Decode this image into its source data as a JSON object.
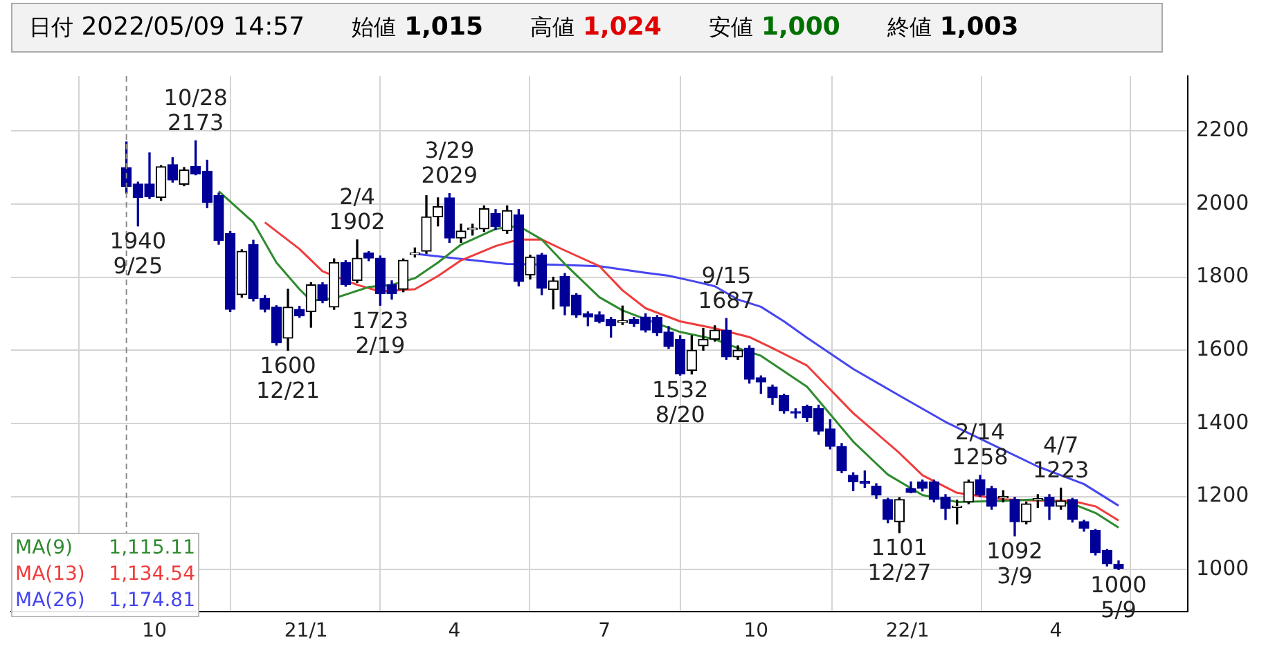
{
  "chart_data": {
    "type": "candlestick",
    "annotations": [
      "日付 2022/05/09 14:57",
      "始値 1,015",
      "高値 1,024",
      "安値 1,000",
      "終値 1,003",
      {
        "text": "10/28\n2173",
        "x": "2020-10-26",
        "y": 2173
      },
      {
        "text": "1940\n9/25",
        "x": "2020-09-21",
        "y": 1940
      },
      {
        "text": "1600\n12/21",
        "x": "2020-12-21",
        "y": 1600
      },
      {
        "text": "2/4\n1902",
        "x": "2021-02-01",
        "y": 1902
      },
      {
        "text": "1723\n2/19",
        "x": "2021-02-15",
        "y": 1723
      },
      {
        "text": "3/29\n2029",
        "x": "2021-03-29",
        "y": 2029
      },
      {
        "text": "1532\n8/20",
        "x": "2021-08-16",
        "y": 1532
      },
      {
        "text": "9/15\n1687",
        "x": "2021-09-13",
        "y": 1687
      },
      {
        "text": "1101\n12/27",
        "x": "2021-12-27",
        "y": 1101
      },
      {
        "text": "2/14\n1258",
        "x": "2022-02-14",
        "y": 1258
      },
      {
        "text": "1092\n3/9",
        "x": "2022-03-07",
        "y": 1092
      },
      {
        "text": "4/7\n1223",
        "x": "2022-04-04",
        "y": 1223
      },
      {
        "text": "1000\n5/9",
        "x": "2022-05-09",
        "y": 1000
      }
    ],
    "series": [
      {
        "type": "candlestick",
        "colors": [
          "#000099",
          "#000099",
          "#000099",
          "#000000",
          "#000099",
          "#000000",
          "#000099",
          "#000099",
          "#000099",
          "#000099",
          "#000000",
          "#000099",
          "#000099",
          "#000099",
          "#000000",
          "#000099",
          "#000000",
          "#000099",
          "#000000",
          "#000099",
          "#000000",
          "#000099",
          "#000099",
          "#000099",
          "#000000",
          "#000000",
          "#000000",
          "#000000",
          "#000099",
          "#000000",
          "#000000",
          "#000000",
          "#000099",
          "#000000",
          "#000099",
          "#000000",
          "#000099",
          "#000000",
          "#000099",
          "#000099",
          "#000099",
          "#000099",
          "#000099",
          "#000000",
          "#000099",
          "#000099",
          "#000099",
          "#000099",
          "#000099",
          "#000000",
          "#000000",
          "#000000",
          "#000099",
          "#000000",
          "#000099",
          "#000099",
          "#000099",
          "#000099",
          "#000099",
          "#000099",
          "#000099",
          "#000099",
          "#000099",
          "#000099",
          "#000099",
          "#000099",
          "#000099",
          "#000000",
          "#000099",
          "#000099",
          "#000099",
          "#000099",
          "#000000",
          "#000000",
          "#000099",
          "#000099",
          "#000000",
          "#000099",
          "#000000",
          "#000000",
          "#000099",
          "#000000",
          "#000099",
          "#000099",
          "#000099",
          "#000099",
          "#000099"
        ],
        "x": [
          "2020-09-14",
          "2020-09-21",
          "2020-09-28",
          "2020-10-05",
          "2020-10-12",
          "2020-10-19",
          "2020-10-26",
          "2020-11-02",
          "2020-11-09",
          "2020-11-16",
          "2020-11-23",
          "2020-11-30",
          "2020-12-07",
          "2020-12-14",
          "2020-12-21",
          "2020-12-28",
          "2021-01-04",
          "2021-01-11",
          "2021-01-18",
          "2021-01-25",
          "2021-02-01",
          "2021-02-08",
          "2021-02-15",
          "2021-02-22",
          "2021-03-01",
          "2021-03-08",
          "2021-03-15",
          "2021-03-22",
          "2021-03-29",
          "2021-04-05",
          "2021-04-12",
          "2021-04-19",
          "2021-04-26",
          "2021-05-03",
          "2021-05-10",
          "2021-05-17",
          "2021-05-24",
          "2021-05-31",
          "2021-06-07",
          "2021-06-14",
          "2021-06-21",
          "2021-06-28",
          "2021-07-05",
          "2021-07-12",
          "2021-07-19",
          "2021-07-26",
          "2021-08-02",
          "2021-08-09",
          "2021-08-16",
          "2021-08-23",
          "2021-08-30",
          "2021-09-06",
          "2021-09-13",
          "2021-09-20",
          "2021-09-27",
          "2021-10-04",
          "2021-10-11",
          "2021-10-18",
          "2021-10-25",
          "2021-11-01",
          "2021-11-08",
          "2021-11-15",
          "2021-11-22",
          "2021-11-29",
          "2021-12-06",
          "2021-12-13",
          "2021-12-20",
          "2021-12-27",
          "2022-01-03",
          "2022-01-10",
          "2022-01-17",
          "2022-01-24",
          "2022-01-31",
          "2022-02-07",
          "2022-02-14",
          "2022-02-21",
          "2022-02-28",
          "2022-03-07",
          "2022-03-14",
          "2022-03-21",
          "2022-03-28",
          "2022-04-04",
          "2022-04-11",
          "2022-04-18",
          "2022-04-25",
          "2022-05-02",
          "2022-05-09"
        ],
        "ohlc": [
          [
            2100,
            2170,
            2030,
            2048
          ],
          [
            2055,
            2060,
            1940,
            2018
          ],
          [
            2055,
            2140,
            2015,
            2020
          ],
          [
            2018,
            2105,
            2010,
            2102
          ],
          [
            2108,
            2127,
            2060,
            2066
          ],
          [
            2054,
            2100,
            2050,
            2093
          ],
          [
            2103,
            2173,
            2080,
            2082
          ],
          [
            2090,
            2120,
            1990,
            2005
          ],
          [
            2023,
            2030,
            1890,
            1901
          ],
          [
            1919,
            1925,
            1706,
            1712
          ],
          [
            1752,
            1875,
            1745,
            1871
          ],
          [
            1889,
            1901,
            1735,
            1742
          ],
          [
            1742,
            1750,
            1705,
            1712
          ],
          [
            1718,
            1722,
            1614,
            1620
          ],
          [
            1633,
            1767,
            1600,
            1718
          ],
          [
            1712,
            1720,
            1690,
            1694
          ],
          [
            1706,
            1785,
            1663,
            1779
          ],
          [
            1779,
            1785,
            1730,
            1736
          ],
          [
            1718,
            1850,
            1712,
            1840
          ],
          [
            1840,
            1845,
            1775,
            1779
          ],
          [
            1791,
            1902,
            1785,
            1852
          ],
          [
            1866,
            1870,
            1845,
            1852
          ],
          [
            1852,
            1858,
            1723,
            1755
          ],
          [
            1779,
            1790,
            1740,
            1755
          ],
          [
            1767,
            1850,
            1760,
            1846
          ],
          [
            1862,
            1880,
            1855,
            1866
          ],
          [
            1871,
            2023,
            1865,
            1965
          ],
          [
            1965,
            2017,
            1940,
            1993
          ],
          [
            2017,
            2029,
            1895,
            1907
          ],
          [
            1907,
            1945,
            1895,
            1926
          ],
          [
            1930,
            1945,
            1915,
            1934
          ],
          [
            1932,
            1995,
            1925,
            1987
          ],
          [
            1974,
            1985,
            1930,
            1938
          ],
          [
            1927,
            1995,
            1920,
            1982
          ],
          [
            1970,
            1985,
            1776,
            1788
          ],
          [
            1806,
            1860,
            1795,
            1855
          ],
          [
            1861,
            1865,
            1752,
            1770
          ],
          [
            1766,
            1800,
            1713,
            1790
          ],
          [
            1802,
            1810,
            1697,
            1721
          ],
          [
            1751,
            1755,
            1690,
            1697
          ],
          [
            1700,
            1705,
            1667,
            1691
          ],
          [
            1697,
            1705,
            1675,
            1679
          ],
          [
            1685,
            1690,
            1636,
            1667
          ],
          [
            1676,
            1721,
            1670,
            1681
          ],
          [
            1685,
            1690,
            1665,
            1673
          ],
          [
            1691,
            1700,
            1650,
            1655
          ],
          [
            1690,
            1695,
            1640,
            1648
          ],
          [
            1650,
            1665,
            1605,
            1610
          ],
          [
            1630,
            1640,
            1532,
            1535
          ],
          [
            1545,
            1640,
            1535,
            1600
          ],
          [
            1612,
            1660,
            1600,
            1630
          ],
          [
            1630,
            1667,
            1625,
            1655
          ],
          [
            1655,
            1687,
            1575,
            1582
          ],
          [
            1582,
            1612,
            1575,
            1600
          ],
          [
            1606,
            1612,
            1510,
            1521
          ],
          [
            1525,
            1530,
            1482,
            1513
          ],
          [
            1500,
            1505,
            1452,
            1470
          ],
          [
            1476,
            1480,
            1428,
            1434
          ],
          [
            1432,
            1440,
            1415,
            1428
          ],
          [
            1446,
            1450,
            1405,
            1416
          ],
          [
            1440,
            1450,
            1370,
            1379
          ],
          [
            1385,
            1410,
            1330,
            1337
          ],
          [
            1337,
            1345,
            1265,
            1270
          ],
          [
            1258,
            1265,
            1216,
            1240
          ],
          [
            1242,
            1270,
            1225,
            1236
          ],
          [
            1228,
            1235,
            1195,
            1204
          ],
          [
            1192,
            1195,
            1128,
            1137
          ],
          [
            1131,
            1197,
            1101,
            1192
          ],
          [
            1222,
            1240,
            1210,
            1212
          ],
          [
            1240,
            1245,
            1215,
            1222
          ],
          [
            1240,
            1245,
            1185,
            1192
          ],
          [
            1198,
            1205,
            1137,
            1167
          ],
          [
            1170,
            1190,
            1125,
            1174
          ],
          [
            1185,
            1245,
            1180,
            1240
          ],
          [
            1246,
            1258,
            1200,
            1204
          ],
          [
            1222,
            1228,
            1165,
            1173
          ],
          [
            1196,
            1216,
            1185,
            1200
          ],
          [
            1192,
            1198,
            1092,
            1131
          ],
          [
            1131,
            1185,
            1125,
            1180
          ],
          [
            1190,
            1205,
            1170,
            1194
          ],
          [
            1198,
            1205,
            1137,
            1173
          ],
          [
            1173,
            1223,
            1165,
            1188
          ],
          [
            1192,
            1195,
            1130,
            1137
          ],
          [
            1131,
            1135,
            1105,
            1113
          ],
          [
            1107,
            1110,
            1040,
            1046
          ],
          [
            1052,
            1055,
            1010,
            1016
          ],
          [
            1015,
            1024,
            1000,
            1003
          ]
        ]
      },
      {
        "type": "line",
        "name": "MA(9) 1,115.11",
        "color": "#2e8b2e",
        "x": [
          "2020-11-09",
          "2020-11-30",
          "2020-12-14",
          "2020-12-28",
          "2021-01-04",
          "2021-01-18",
          "2021-02-08",
          "2021-02-22",
          "2021-03-08",
          "2021-03-22",
          "2021-04-05",
          "2021-04-26",
          "2021-05-10",
          "2021-05-24",
          "2021-06-07",
          "2021-06-28",
          "2021-07-12",
          "2021-07-26",
          "2021-08-16",
          "2021-09-06",
          "2021-09-20",
          "2021-10-04",
          "2021-11-01",
          "2021-11-29",
          "2021-12-20",
          "2022-01-10",
          "2022-01-31",
          "2022-02-28",
          "2022-03-21",
          "2022-04-11",
          "2022-04-25",
          "2022-05-09"
        ],
        "values": [
          2035,
          1950,
          1840,
          1767,
          1736,
          1742,
          1773,
          1779,
          1797,
          1840,
          1889,
          1932,
          1940,
          1903,
          1836,
          1745,
          1709,
          1685,
          1650,
          1630,
          1606,
          1585,
          1500,
          1350,
          1260,
          1204,
          1185,
          1188,
          1192,
          1180,
          1155,
          1115.11
        ]
      },
      {
        "type": "line",
        "name": "MA(13) 1,134.54",
        "color": "#f03c3c",
        "x": [
          "2020-12-07",
          "2020-12-28",
          "2021-01-11",
          "2021-02-01",
          "2021-02-15",
          "2021-03-08",
          "2021-03-22",
          "2021-04-05",
          "2021-04-26",
          "2021-05-10",
          "2021-05-24",
          "2021-06-07",
          "2021-06-28",
          "2021-07-12",
          "2021-07-26",
          "2021-08-16",
          "2021-09-06",
          "2021-09-27",
          "2021-10-11",
          "2021-11-01",
          "2021-11-29",
          "2021-12-27",
          "2022-01-10",
          "2022-01-31",
          "2022-02-28",
          "2022-03-21",
          "2022-04-11",
          "2022-04-25",
          "2022-05-09"
        ],
        "values": [
          1950,
          1877,
          1816,
          1779,
          1761,
          1767,
          1803,
          1846,
          1885,
          1903,
          1903,
          1873,
          1830,
          1764,
          1715,
          1679,
          1660,
          1636,
          1606,
          1558,
          1428,
          1319,
          1258,
          1210,
          1192,
          1189,
          1188,
          1173,
          1134.54
        ]
      },
      {
        "type": "line",
        "name": "MA(26) 1,174.81",
        "color": "#4646f0",
        "x": [
          "2021-03-08",
          "2021-04-05",
          "2021-05-03",
          "2021-05-31",
          "2021-06-28",
          "2021-07-26",
          "2021-08-09",
          "2021-08-23",
          "2021-09-06",
          "2021-09-20",
          "2021-10-04",
          "2021-10-18",
          "2021-11-01",
          "2021-11-29",
          "2021-12-27",
          "2022-01-24",
          "2022-02-21",
          "2022-03-21",
          "2022-04-18",
          "2022-05-09"
        ],
        "values": [
          1864,
          1850,
          1836,
          1834,
          1830,
          1812,
          1804,
          1790,
          1775,
          1739,
          1719,
          1679,
          1634,
          1549,
          1476,
          1404,
          1343,
          1282,
          1234,
          1174.81
        ]
      }
    ],
    "xlim": [
      "2020-07-06",
      "2022-06-20"
    ],
    "xticks": [
      {
        "value": "2020-10-01",
        "label": "10"
      },
      {
        "value": "2021-01-01",
        "label": "21/1"
      },
      {
        "value": "2021-04-01",
        "label": "4"
      },
      {
        "value": "2021-07-01",
        "label": "7"
      },
      {
        "value": "2021-10-01",
        "label": "10"
      },
      {
        "value": "2022-01-01",
        "label": "22/1"
      },
      {
        "value": "2022-04-01",
        "label": "4"
      }
    ],
    "ylim": [
      885,
      2350
    ],
    "yticks": [
      1000,
      1200,
      1400,
      1600,
      1800,
      2000,
      2200
    ],
    "ref_lines": [
      {
        "axis": "x",
        "value": "2020-09-14",
        "color": "#888888",
        "line_style": "dashed"
      }
    ],
    "grid": true
  }
}
